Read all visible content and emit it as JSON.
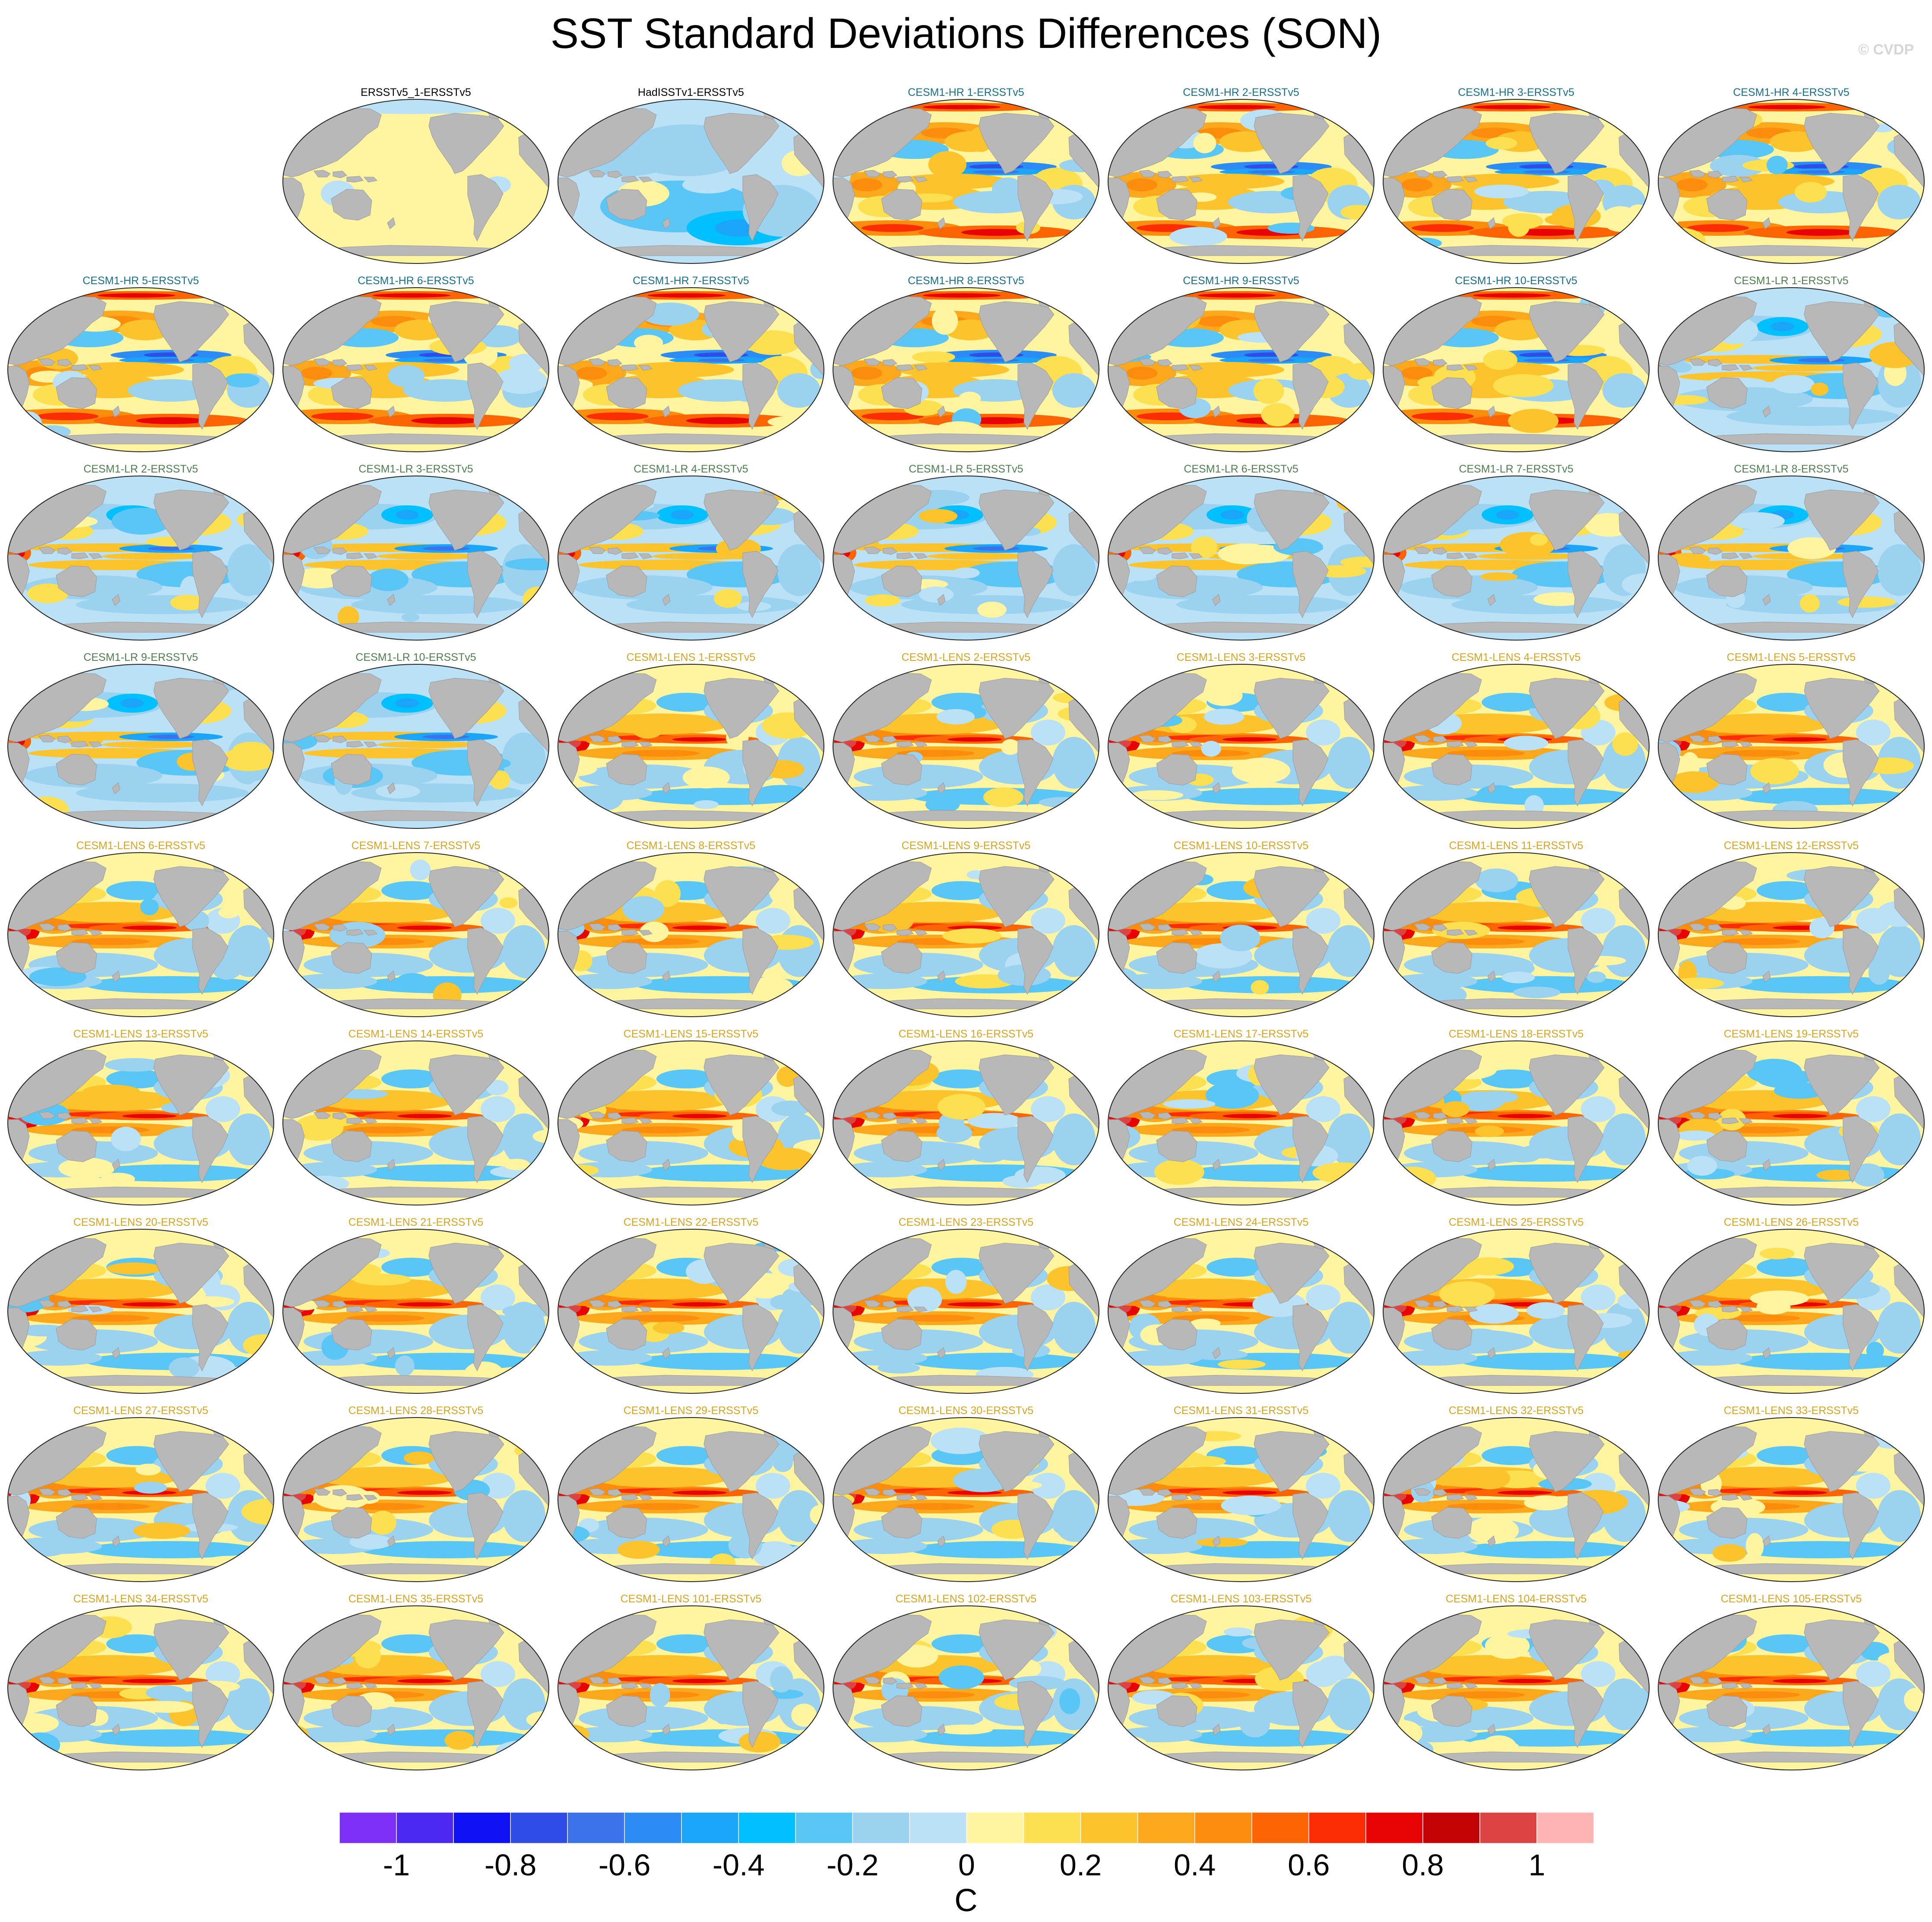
{
  "title": "SST Standard Deviations Differences (SON)",
  "watermark": "© CVDP",
  "colors": {
    "land": "#b8b8b8",
    "coast_fill_zero": "#ffffff",
    "title_obs": "#000000",
    "title_hr": "#1a6f8a",
    "title_lr": "#4f7f4f",
    "title_lens": "#d9a521"
  },
  "chart_data": {
    "type": "heatmap",
    "map_projection": "robinson-like global ellipse, Pacific-centered",
    "variable": "SST standard deviation difference",
    "season": "SON",
    "units": "C",
    "colorbar": {
      "ticks": [
        "-1",
        "-0.8",
        "-0.6",
        "-0.4",
        "-0.2",
        "0",
        "0.2",
        "0.4",
        "0.6",
        "0.8",
        "1"
      ],
      "tick_values": [
        -1,
        -0.8,
        -0.6,
        -0.4,
        -0.2,
        0,
        0.2,
        0.4,
        0.6,
        0.8,
        1
      ],
      "min": -1.1,
      "max": 1.1,
      "step": 0.1,
      "colors": [
        "#7b2ff7",
        "#4d28f1",
        "#1010f4",
        "#2f4ee8",
        "#3c73ea",
        "#2c8cf6",
        "#1aa5fb",
        "#00c0ff",
        "#5ac6f6",
        "#9ad2ef",
        "#bbe1f6",
        "#fff5a0",
        "#fde050",
        "#fcc42c",
        "#fca81c",
        "#fc8c0c",
        "#fc6404",
        "#fc2c04",
        "#e80404",
        "#c40404",
        "#dc4444",
        "#ffb4b4"
      ],
      "orientation": "horizontal",
      "placement": "bottom"
    },
    "panels": [
      {
        "label": "ERSSTv5_1-ERSSTv5",
        "group": "obs",
        "pattern": "near-zero"
      },
      {
        "label": "HadISSTv1-ERSSTv5",
        "group": "obs",
        "pattern": "obs-diff"
      },
      {
        "label": "CESM1-HR 1-ERSSTv5",
        "group": "hr",
        "pattern": "hr"
      },
      {
        "label": "CESM1-HR 2-ERSSTv5",
        "group": "hr",
        "pattern": "hr"
      },
      {
        "label": "CESM1-HR 3-ERSSTv5",
        "group": "hr",
        "pattern": "hr"
      },
      {
        "label": "CESM1-HR 4-ERSSTv5",
        "group": "hr",
        "pattern": "hr"
      },
      {
        "label": "CESM1-HR 5-ERSSTv5",
        "group": "hr",
        "pattern": "hr"
      },
      {
        "label": "CESM1-HR 6-ERSSTv5",
        "group": "hr",
        "pattern": "hr"
      },
      {
        "label": "CESM1-HR 7-ERSSTv5",
        "group": "hr",
        "pattern": "hr"
      },
      {
        "label": "CESM1-HR 8-ERSSTv5",
        "group": "hr",
        "pattern": "hr"
      },
      {
        "label": "CESM1-HR 9-ERSSTv5",
        "group": "hr",
        "pattern": "hr"
      },
      {
        "label": "CESM1-HR 10-ERSSTv5",
        "group": "hr",
        "pattern": "hr"
      },
      {
        "label": "CESM1-LR 1-ERSSTv5",
        "group": "lr",
        "pattern": "lr"
      },
      {
        "label": "CESM1-LR 2-ERSSTv5",
        "group": "lr",
        "pattern": "lr"
      },
      {
        "label": "CESM1-LR 3-ERSSTv5",
        "group": "lr",
        "pattern": "lr"
      },
      {
        "label": "CESM1-LR 4-ERSSTv5",
        "group": "lr",
        "pattern": "lr"
      },
      {
        "label": "CESM1-LR 5-ERSSTv5",
        "group": "lr",
        "pattern": "lr"
      },
      {
        "label": "CESM1-LR 6-ERSSTv5",
        "group": "lr",
        "pattern": "lr"
      },
      {
        "label": "CESM1-LR 7-ERSSTv5",
        "group": "lr",
        "pattern": "lr"
      },
      {
        "label": "CESM1-LR 8-ERSSTv5",
        "group": "lr",
        "pattern": "lr"
      },
      {
        "label": "CESM1-LR 9-ERSSTv5",
        "group": "lr",
        "pattern": "lr"
      },
      {
        "label": "CESM1-LR 10-ERSSTv5",
        "group": "lr",
        "pattern": "lr"
      },
      {
        "label": "CESM1-LENS 1-ERSSTv5",
        "group": "lens",
        "pattern": "lens"
      },
      {
        "label": "CESM1-LENS 2-ERSSTv5",
        "group": "lens",
        "pattern": "lens"
      },
      {
        "label": "CESM1-LENS 3-ERSSTv5",
        "group": "lens",
        "pattern": "lens"
      },
      {
        "label": "CESM1-LENS 4-ERSSTv5",
        "group": "lens",
        "pattern": "lens"
      },
      {
        "label": "CESM1-LENS 5-ERSSTv5",
        "group": "lens",
        "pattern": "lens"
      },
      {
        "label": "CESM1-LENS 6-ERSSTv5",
        "group": "lens",
        "pattern": "lens"
      },
      {
        "label": "CESM1-LENS 7-ERSSTv5",
        "group": "lens",
        "pattern": "lens"
      },
      {
        "label": "CESM1-LENS 8-ERSSTv5",
        "group": "lens",
        "pattern": "lens"
      },
      {
        "label": "CESM1-LENS 9-ERSSTv5",
        "group": "lens",
        "pattern": "lens"
      },
      {
        "label": "CESM1-LENS 10-ERSSTv5",
        "group": "lens",
        "pattern": "lens"
      },
      {
        "label": "CESM1-LENS 11-ERSSTv5",
        "group": "lens",
        "pattern": "lens"
      },
      {
        "label": "CESM1-LENS 12-ERSSTv5",
        "group": "lens",
        "pattern": "lens"
      },
      {
        "label": "CESM1-LENS 13-ERSSTv5",
        "group": "lens",
        "pattern": "lens"
      },
      {
        "label": "CESM1-LENS 14-ERSSTv5",
        "group": "lens",
        "pattern": "lens"
      },
      {
        "label": "CESM1-LENS 15-ERSSTv5",
        "group": "lens",
        "pattern": "lens"
      },
      {
        "label": "CESM1-LENS 16-ERSSTv5",
        "group": "lens",
        "pattern": "lens"
      },
      {
        "label": "CESM1-LENS 17-ERSSTv5",
        "group": "lens",
        "pattern": "lens"
      },
      {
        "label": "CESM1-LENS 18-ERSSTv5",
        "group": "lens",
        "pattern": "lens"
      },
      {
        "label": "CESM1-LENS 19-ERSSTv5",
        "group": "lens",
        "pattern": "lens"
      },
      {
        "label": "CESM1-LENS 20-ERSSTv5",
        "group": "lens",
        "pattern": "lens"
      },
      {
        "label": "CESM1-LENS 21-ERSSTv5",
        "group": "lens",
        "pattern": "lens"
      },
      {
        "label": "CESM1-LENS 22-ERSSTv5",
        "group": "lens",
        "pattern": "lens"
      },
      {
        "label": "CESM1-LENS 23-ERSSTv5",
        "group": "lens",
        "pattern": "lens"
      },
      {
        "label": "CESM1-LENS 24-ERSSTv5",
        "group": "lens",
        "pattern": "lens"
      },
      {
        "label": "CESM1-LENS 25-ERSSTv5",
        "group": "lens",
        "pattern": "lens"
      },
      {
        "label": "CESM1-LENS 26-ERSSTv5",
        "group": "lens",
        "pattern": "lens"
      },
      {
        "label": "CESM1-LENS 27-ERSSTv5",
        "group": "lens",
        "pattern": "lens"
      },
      {
        "label": "CESM1-LENS 28-ERSSTv5",
        "group": "lens",
        "pattern": "lens"
      },
      {
        "label": "CESM1-LENS 29-ERSSTv5",
        "group": "lens",
        "pattern": "lens"
      },
      {
        "label": "CESM1-LENS 30-ERSSTv5",
        "group": "lens",
        "pattern": "lens"
      },
      {
        "label": "CESM1-LENS 31-ERSSTv5",
        "group": "lens",
        "pattern": "lens"
      },
      {
        "label": "CESM1-LENS 32-ERSSTv5",
        "group": "lens",
        "pattern": "lens"
      },
      {
        "label": "CESM1-LENS 33-ERSSTv5",
        "group": "lens",
        "pattern": "lens"
      },
      {
        "label": "CESM1-LENS 34-ERSSTv5",
        "group": "lens",
        "pattern": "lens"
      },
      {
        "label": "CESM1-LENS 35-ERSSTv5",
        "group": "lens",
        "pattern": "lens"
      },
      {
        "label": "CESM1-LENS 101-ERSSTv5",
        "group": "lens",
        "pattern": "lens"
      },
      {
        "label": "CESM1-LENS 102-ERSSTv5",
        "group": "lens",
        "pattern": "lens"
      },
      {
        "label": "CESM1-LENS 103-ERSSTv5",
        "group": "lens",
        "pattern": "lens"
      },
      {
        "label": "CESM1-LENS 104-ERSSTv5",
        "group": "lens",
        "pattern": "lens"
      },
      {
        "label": "CESM1-LENS 105-ERSSTv5",
        "group": "lens",
        "pattern": "lens"
      }
    ]
  }
}
